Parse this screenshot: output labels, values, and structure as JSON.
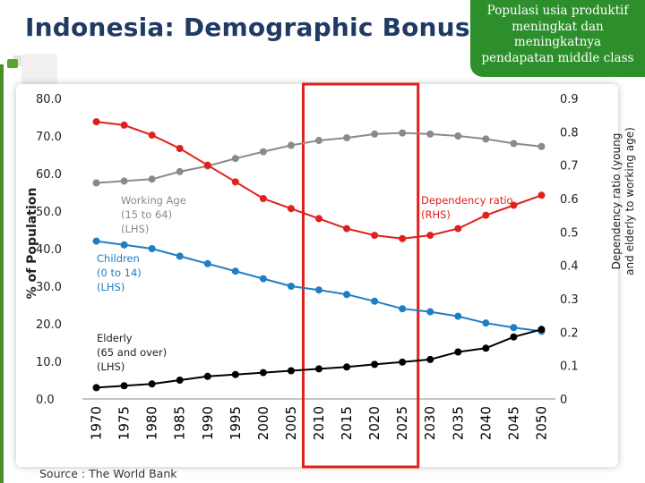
{
  "slide": {
    "title": "Indonesia: Demographic Bonus",
    "callout_lines": [
      "Populasi usia produktif",
      "meningkat dan",
      "meningkatnya",
      "pendapatan middle class"
    ],
    "source": "Source : The World Bank",
    "colors": {
      "title": "#1f3b64",
      "callout_bg": "#2d8f2b",
      "accent": "#4c8c2b"
    }
  },
  "chart_data": {
    "type": "line",
    "categories": [
      "1970",
      "1975",
      "1980",
      "1985",
      "1990",
      "1995",
      "2000",
      "2005",
      "2010",
      "2015",
      "2020",
      "2025",
      "2030",
      "2035",
      "2040",
      "2045",
      "2050"
    ],
    "ylabel": "% of Population",
    "ylabel_right": [
      "Dependency ratio (young",
      "and elderly to working age)"
    ],
    "ylim": [
      0,
      80
    ],
    "ylim_right": [
      0,
      0.9
    ],
    "y_ticks": [
      "0.0",
      "10.0",
      "20.0",
      "30.0",
      "40.0",
      "50.0",
      "60.0",
      "70.0",
      "80.0"
    ],
    "y_ticks_right": [
      "0",
      "0.1",
      "0.2",
      "0.3",
      "0.4",
      "0.5",
      "0.6",
      "0.7",
      "0.8",
      "0.9"
    ],
    "grid": false,
    "highlight": {
      "from": "2010",
      "to": "2025",
      "color": "#e0201b"
    },
    "series": [
      {
        "name": "Working Age (15 to 64) (LHS)",
        "label_lines": [
          "Working Age",
          "(15 to 64)",
          "(LHS)"
        ],
        "axis": "left",
        "color": "#8a8a8a",
        "values": [
          57.5,
          58.0,
          58.5,
          60.5,
          62.0,
          64.0,
          65.8,
          67.5,
          68.8,
          69.5,
          70.5,
          70.8,
          70.5,
          70.0,
          69.2,
          68.0,
          67.2
        ]
      },
      {
        "name": "Children (0 to 14) (LHS)",
        "label_lines": [
          "Children",
          "(0 to 14)",
          "(LHS)"
        ],
        "axis": "left",
        "color": "#1f7ec2",
        "values": [
          42.0,
          41.0,
          40.0,
          38.0,
          36.0,
          34.0,
          32.0,
          30.0,
          29.0,
          27.8,
          26.0,
          24.0,
          23.2,
          22.0,
          20.2,
          19.0,
          18.0
        ]
      },
      {
        "name": "Elderly (65 and over) (LHS)",
        "label_lines": [
          "Elderly",
          "(65 and over)",
          "(LHS)"
        ],
        "axis": "left",
        "color": "#000000",
        "values": [
          3.0,
          3.5,
          4.0,
          5.0,
          6.0,
          6.5,
          7.0,
          7.5,
          8.0,
          8.5,
          9.2,
          9.8,
          10.5,
          12.5,
          13.5,
          16.5,
          18.5
        ]
      },
      {
        "name": "Dependency ratio (RHS)",
        "label_lines": [
          "Dependency ratio",
          "(RHS)"
        ],
        "axis": "right",
        "color": "#e0201b",
        "values": [
          0.83,
          0.82,
          0.79,
          0.75,
          0.7,
          0.65,
          0.6,
          0.57,
          0.54,
          0.51,
          0.49,
          0.48,
          0.49,
          0.51,
          0.55,
          0.58,
          0.61
        ]
      }
    ]
  }
}
